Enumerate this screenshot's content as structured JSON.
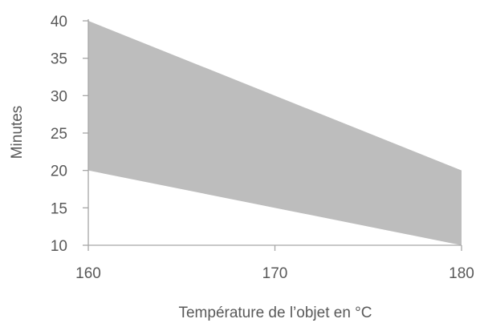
{
  "chart_data": {
    "type": "area",
    "title": "",
    "xlabel": "Température de l’objet en °C",
    "ylabel": "Minutes",
    "x": [
      160,
      170,
      180
    ],
    "series": [
      {
        "role": "lower",
        "values": [
          20,
          15,
          10
        ]
      },
      {
        "role": "upper",
        "values": [
          40,
          30,
          20
        ]
      }
    ],
    "xlim": [
      160,
      180
    ],
    "ylim": [
      10,
      40
    ],
    "xticks": [
      160,
      170,
      180
    ],
    "yticks": [
      10,
      15,
      20,
      25,
      30,
      35,
      40
    ],
    "grid": false,
    "fill_color": "#bdbdbd",
    "axis_color": "#a6a6a6",
    "text_color": "#595959"
  }
}
